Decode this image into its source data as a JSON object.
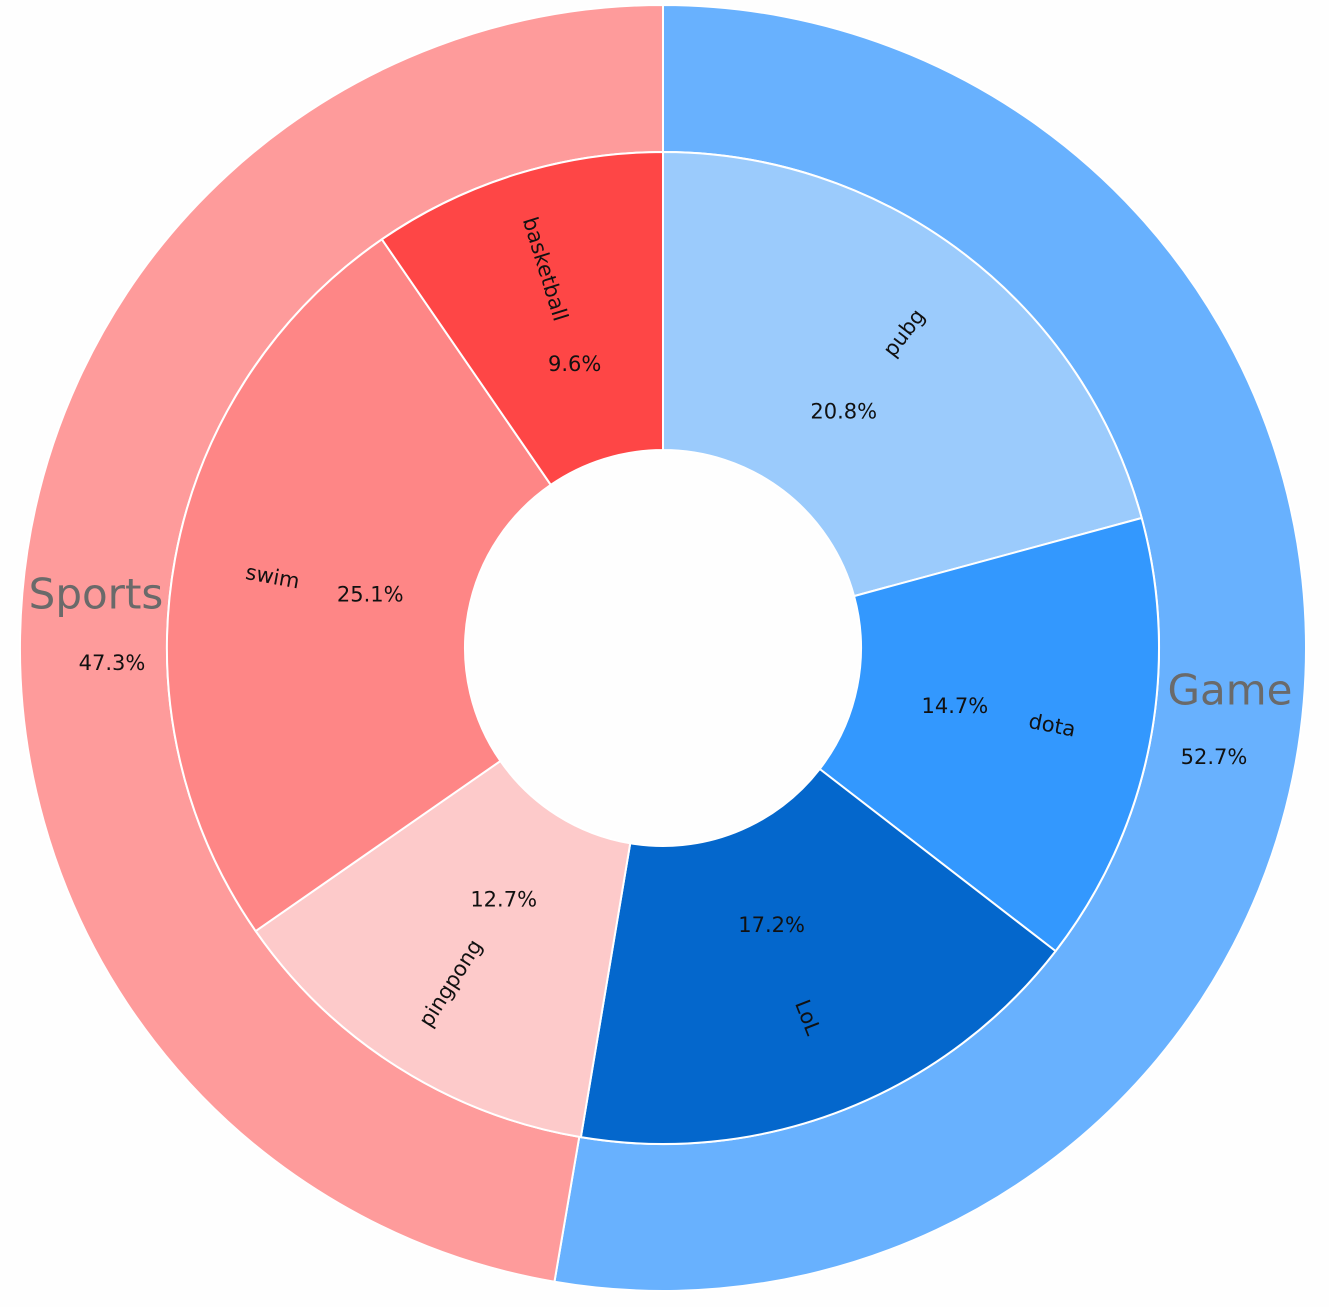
{
  "chart_data": {
    "type": "pie",
    "subtype": "nested-donut",
    "start_angle_deg": 90,
    "direction": "clockwise",
    "outer": [
      {
        "name": "Game",
        "value": 52.7,
        "label": "52.7%",
        "color": "#68b1fe"
      },
      {
        "name": "Sports",
        "value": 47.3,
        "label": "47.3%",
        "color": "#fe9b9b"
      }
    ],
    "inner": [
      {
        "name": "pubg",
        "value": 20.8,
        "label": "20.8%",
        "color": "#9bcbfc",
        "group": "Game"
      },
      {
        "name": "dota",
        "value": 14.7,
        "label": "14.7%",
        "color": "#3398fe",
        "group": "Game"
      },
      {
        "name": "LoL",
        "value": 17.2,
        "label": "17.2%",
        "color": "#0467cc",
        "group": "Game"
      },
      {
        "name": "pingpong",
        "value": 12.7,
        "label": "12.7%",
        "color": "#fdcaca",
        "group": "Sports"
      },
      {
        "name": "swim",
        "value": 25.1,
        "label": "25.1%",
        "color": "#fe8686",
        "group": "Sports"
      },
      {
        "name": "basketball",
        "value": 9.6,
        "label": "9.6%",
        "color": "#fe4646",
        "group": "Sports"
      }
    ]
  }
}
